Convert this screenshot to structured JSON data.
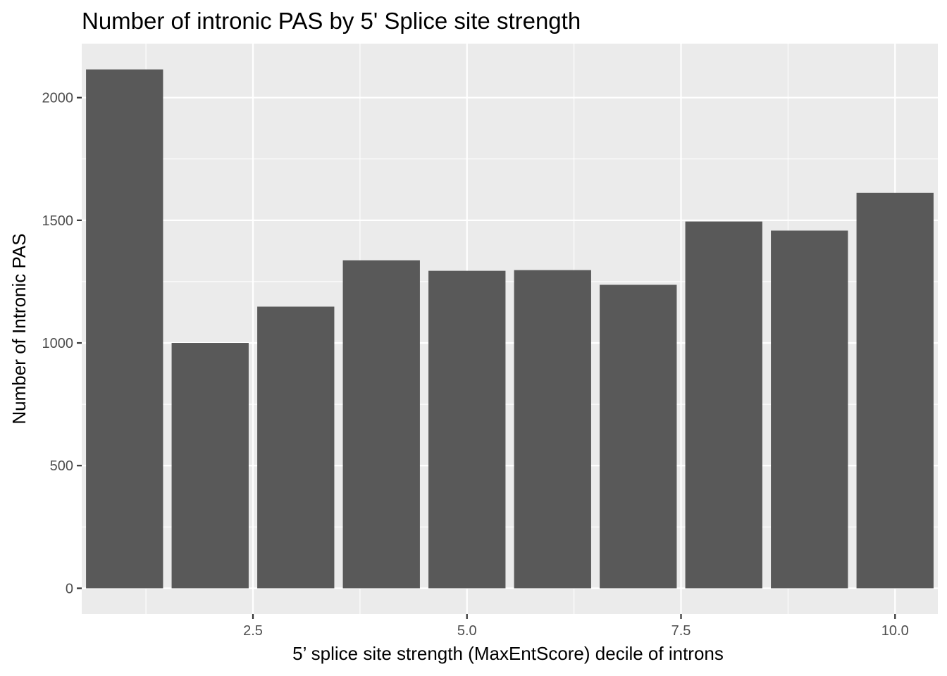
{
  "chart_data": {
    "type": "bar",
    "title": "Number of intronic PAS by 5' Splice site strength",
    "xlabel": "5’ splice site strength (MaxEntScore) decile of introns",
    "ylabel": "Number of Intronic PAS",
    "x": [
      1,
      2,
      3,
      4,
      5,
      6,
      7,
      8,
      9,
      10
    ],
    "values": [
      2115,
      1000,
      1148,
      1337,
      1294,
      1297,
      1237,
      1495,
      1458,
      1612
    ],
    "xlim": [
      0.5,
      10.5
    ],
    "ylim": [
      -105,
      2220
    ],
    "xticks": [
      2.5,
      5.0,
      7.5,
      10.0
    ],
    "xtick_labels": [
      "2.5",
      "5.0",
      "7.5",
      "10.0"
    ],
    "yticks": [
      0,
      500,
      1000,
      1500,
      2000
    ],
    "ytick_labels": [
      "0",
      "500",
      "1000",
      "1500",
      "2000"
    ],
    "grid": true,
    "colors": {
      "bar": "#595959",
      "panel": "#ebebeb",
      "grid": "#ffffff"
    }
  }
}
